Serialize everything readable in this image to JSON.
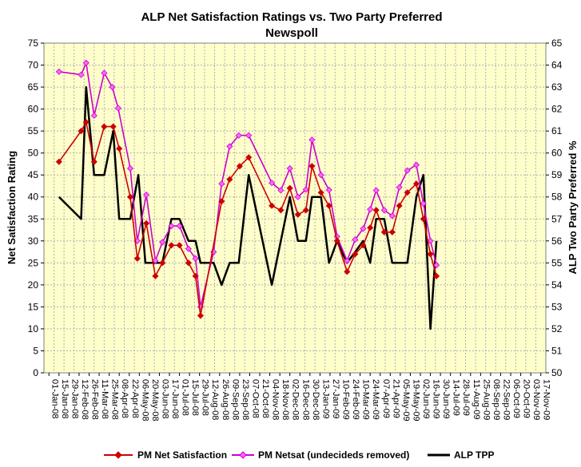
{
  "chart_data": {
    "type": "line",
    "title": "ALP Net Satisfaction Ratings vs. Two Party Preferred",
    "subtitle": "Newspoll",
    "ylabel": "Net Satisfaction  Rating",
    "y2label": "ALP Two Party Preferred  %",
    "ylim": [
      0,
      75
    ],
    "y2lim": [
      50,
      65
    ],
    "yticks": [
      "0",
      "5",
      "10",
      "15",
      "20",
      "25",
      "30",
      "35",
      "40",
      "45",
      "50",
      "55",
      "60",
      "65",
      "70",
      "75"
    ],
    "y2ticks": [
      "50",
      "51",
      "52",
      "53",
      "54",
      "55",
      "56",
      "57",
      "58",
      "59",
      "60",
      "61",
      "62",
      "63",
      "64",
      "65"
    ],
    "categories": [
      "01-Jan-08",
      "15-Jan-08",
      "29-Jan-08",
      "12-Feb-08",
      "26-Feb-08",
      "11-Mar-08",
      "25-Mar-08",
      "08-Apr-08",
      "22-Apr-08",
      "06-May-08",
      "20-May-08",
      "03-Jun-08",
      "17-Jun-08",
      "01-Jul-08",
      "15-Jul-08",
      "29-Jul-08",
      "12-Aug-08",
      "26-Aug-08",
      "09-Sep-08",
      "23-Sep-08",
      "07-Oct-08",
      "21-Oct-08",
      "04-Nov-08",
      "18-Nov-08",
      "02-Dec-08",
      "16-Dec-08",
      "30-Dec-08",
      "13-Jan-09",
      "27-Jan-09",
      "10-Feb-09",
      "24-Feb-09",
      "10-Mar-09",
      "24-Mar-09",
      "07-Apr-09",
      "21-Apr-09",
      "05-May-09",
      "19-May-09",
      "02-Jun-09",
      "16-Jun-09",
      "30-Jun-09",
      "14-Jul-09",
      "28-Jul-09",
      "11-Aug-09",
      "25-Aug-09",
      "08-Sep-09",
      "22-Sep-09",
      "06-Oct-09",
      "20-Oct-09",
      "03-Nov-09",
      "17-Nov-09"
    ],
    "series": [
      {
        "name": "PM Net Satisfaction",
        "axis": "left",
        "color": "#cc0000",
        "marker": "diamond",
        "markerFill": "#cc0000",
        "points": [
          [
            1.0,
            48
          ],
          [
            3.2,
            55
          ],
          [
            3.7,
            57
          ],
          [
            4.5,
            48
          ],
          [
            5.5,
            56
          ],
          [
            6.4,
            56
          ],
          [
            7.0,
            51
          ],
          [
            8.1,
            40
          ],
          [
            8.8,
            26
          ],
          [
            9.7,
            34
          ],
          [
            10.6,
            22
          ],
          [
            11.3,
            25
          ],
          [
            12.2,
            29
          ],
          [
            13.0,
            29
          ],
          [
            13.9,
            25
          ],
          [
            14.6,
            22
          ],
          [
            15.1,
            13
          ],
          [
            17.2,
            39
          ],
          [
            18.0,
            44
          ],
          [
            19.0,
            47
          ],
          [
            19.9,
            49
          ],
          [
            22.2,
            38
          ],
          [
            23.1,
            37
          ],
          [
            24.0,
            42
          ],
          [
            24.8,
            36
          ],
          [
            25.6,
            37
          ],
          [
            26.2,
            47
          ],
          [
            27.1,
            41
          ],
          [
            27.9,
            38
          ],
          [
            28.7,
            30
          ],
          [
            29.7,
            23
          ],
          [
            30.5,
            27
          ],
          [
            31.3,
            29
          ],
          [
            32.0,
            33
          ],
          [
            32.6,
            37
          ],
          [
            33.4,
            32
          ],
          [
            34.2,
            32
          ],
          [
            34.9,
            38
          ],
          [
            35.7,
            41
          ],
          [
            36.6,
            43
          ],
          [
            37.3,
            35
          ],
          [
            38.0,
            27
          ],
          [
            38.6,
            22
          ]
        ]
      },
      {
        "name": "PM Netsat (undecideds removed)",
        "axis": "left",
        "color": "#cc00cc",
        "marker": "diamond",
        "markerFill": "#ff66ff",
        "points": [
          [
            1.0,
            68.5
          ],
          [
            3.2,
            67.8
          ],
          [
            3.7,
            70.5
          ],
          [
            4.5,
            58.5
          ],
          [
            5.5,
            68.2
          ],
          [
            6.3,
            65
          ],
          [
            6.9,
            60.2
          ],
          [
            8.1,
            46.5
          ],
          [
            8.8,
            30
          ],
          [
            9.7,
            40.5
          ],
          [
            10.6,
            25.5
          ],
          [
            11.3,
            29.7
          ],
          [
            12.2,
            33.4
          ],
          [
            13.0,
            33.4
          ],
          [
            13.9,
            28.2
          ],
          [
            14.6,
            26
          ],
          [
            15.1,
            15
          ],
          [
            16.4,
            27.5
          ],
          [
            17.2,
            43
          ],
          [
            18.0,
            51.5
          ],
          [
            18.9,
            54
          ],
          [
            19.9,
            54
          ],
          [
            22.2,
            43.2
          ],
          [
            23.1,
            41.5
          ],
          [
            24.0,
            46.5
          ],
          [
            24.8,
            40
          ],
          [
            25.6,
            41.7
          ],
          [
            26.2,
            53
          ],
          [
            27.1,
            45
          ],
          [
            27.9,
            41.6
          ],
          [
            28.7,
            31
          ],
          [
            29.7,
            25.5
          ],
          [
            30.5,
            30.3
          ],
          [
            31.3,
            32.8
          ],
          [
            32.0,
            37.2
          ],
          [
            32.6,
            41.5
          ],
          [
            33.4,
            37
          ],
          [
            34.2,
            35.7
          ],
          [
            34.9,
            42.2
          ],
          [
            35.7,
            46
          ],
          [
            36.6,
            47.3
          ],
          [
            37.3,
            38.5
          ],
          [
            38.0,
            30
          ],
          [
            38.6,
            24.5
          ]
        ]
      },
      {
        "name": "ALP TPP",
        "axis": "right",
        "color": "#000000",
        "marker": "none",
        "points": [
          [
            1.0,
            58
          ],
          [
            3.2,
            57
          ],
          [
            3.7,
            63
          ],
          [
            4.5,
            59
          ],
          [
            5.5,
            59
          ],
          [
            6.4,
            61
          ],
          [
            7.0,
            57
          ],
          [
            8.1,
            57
          ],
          [
            8.9,
            59
          ],
          [
            9.6,
            55
          ],
          [
            10.6,
            55
          ],
          [
            11.3,
            55
          ],
          [
            12.2,
            57
          ],
          [
            13.0,
            57
          ],
          [
            13.9,
            56
          ],
          [
            14.6,
            56
          ],
          [
            15.1,
            55
          ],
          [
            16.4,
            55
          ],
          [
            17.2,
            54
          ],
          [
            18.0,
            55
          ],
          [
            18.9,
            55
          ],
          [
            19.9,
            59
          ],
          [
            22.2,
            54
          ],
          [
            23.1,
            56
          ],
          [
            24.0,
            58
          ],
          [
            24.8,
            56
          ],
          [
            25.6,
            56
          ],
          [
            26.2,
            58
          ],
          [
            27.1,
            58
          ],
          [
            27.9,
            55
          ],
          [
            28.7,
            56
          ],
          [
            29.7,
            55
          ],
          [
            30.5,
            55.5
          ],
          [
            31.3,
            56
          ],
          [
            32.0,
            55
          ],
          [
            32.6,
            57
          ],
          [
            33.4,
            57
          ],
          [
            34.2,
            55
          ],
          [
            34.9,
            55
          ],
          [
            35.7,
            55
          ],
          [
            36.6,
            58
          ],
          [
            37.3,
            59
          ],
          [
            38.0,
            52
          ],
          [
            38.6,
            56
          ]
        ]
      }
    ],
    "legend": [
      {
        "label": "PM Net Satisfaction"
      },
      {
        "label": "PM Netsat (undecideds removed)"
      },
      {
        "label": "ALP TPP"
      }
    ],
    "legend_position": "bottom",
    "grid": true
  }
}
